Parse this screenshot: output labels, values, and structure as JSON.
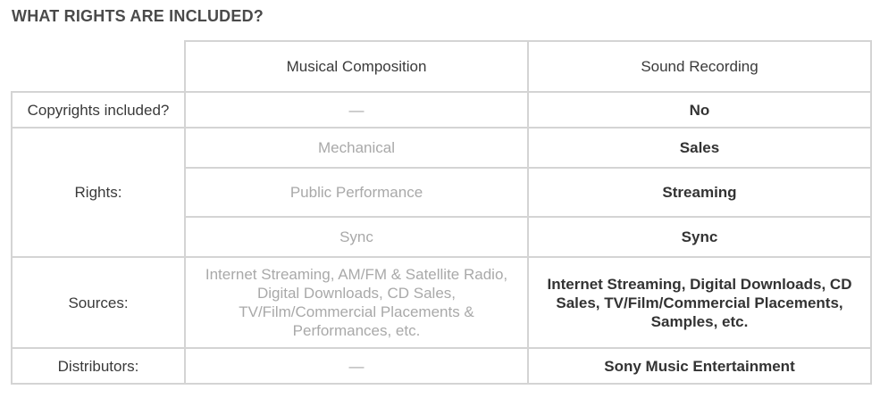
{
  "heading": "WHAT RIGHTS ARE INCLUDED?",
  "columns": {
    "composition": "Musical Composition",
    "recording": "Sound Recording"
  },
  "rows": {
    "copyrights": {
      "label": "Copyrights included?",
      "composition": "—",
      "recording": "No"
    },
    "rights": {
      "label": "Rights:",
      "items": [
        {
          "composition": "Mechanical",
          "recording": "Sales"
        },
        {
          "composition": "Public Performance",
          "recording": "Streaming"
        },
        {
          "composition": "Sync",
          "recording": "Sync"
        }
      ]
    },
    "sources": {
      "label": "Sources:",
      "composition": "Internet Streaming, AM/FM & Satellite Radio, Digital Downloads, CD Sales, TV/Film/Commercial Placements & Performances, etc.",
      "recording": "Internet Streaming, Digital Downloads, CD Sales, TV/Film/Commercial Placements, Samples, etc."
    },
    "distributors": {
      "label": "Distributors:",
      "composition": "—",
      "recording": "Sony Music Entertainment"
    }
  }
}
